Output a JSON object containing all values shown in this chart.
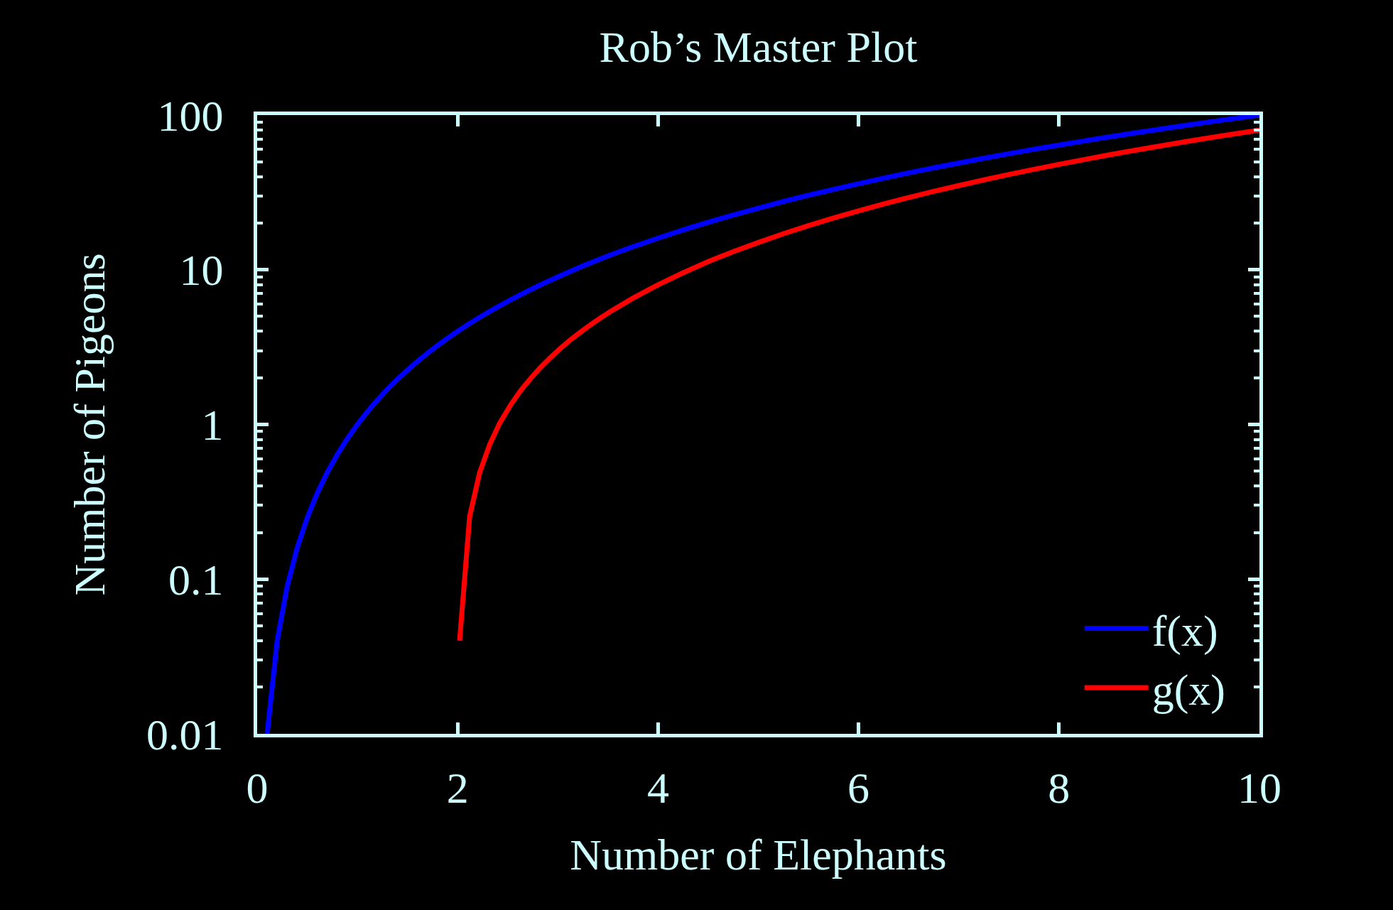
{
  "chart_data": {
    "type": "line",
    "title": "Rob’s Master Plot",
    "xlabel": "Number of Elephants",
    "ylabel": "Number of Pigeons",
    "series": [
      {
        "name": "f(x)",
        "color": "#0000ff",
        "x": [
          0.1,
          0.2,
          0.3,
          0.4,
          0.5,
          0.6,
          0.7,
          0.8,
          0.9,
          1.0,
          1.1,
          1.2,
          1.3,
          1.4,
          1.5,
          1.6,
          1.7,
          1.8,
          1.9,
          2.0,
          2.1,
          2.2,
          2.3,
          2.4,
          2.5,
          2.6,
          2.7,
          2.8,
          2.9,
          3.0,
          3.25,
          3.5,
          3.75,
          4.0,
          4.25,
          4.5,
          4.75,
          5.0,
          5.25,
          5.5,
          5.75,
          6.0,
          6.25,
          6.5,
          6.75,
          7.0,
          7.25,
          7.5,
          7.75,
          8.0,
          8.25,
          8.5,
          8.75,
          9.0,
          9.25,
          9.5,
          9.75,
          10
        ],
        "values": [
          0.01,
          0.04,
          0.09,
          0.16,
          0.25,
          0.36,
          0.49,
          0.64,
          0.81,
          1.0,
          1.21,
          1.44,
          1.69,
          1.96,
          2.25,
          2.56,
          2.89,
          3.24,
          3.61,
          4.0,
          4.41,
          4.84,
          5.29,
          5.76,
          6.25,
          6.76,
          7.29,
          7.84,
          8.41,
          9.0,
          10.6,
          12.3,
          14.1,
          16,
          18.1,
          20.3,
          22.6,
          25,
          27.6,
          30.3,
          33.1,
          36,
          39.1,
          42.3,
          45.6,
          49,
          52.6,
          56.3,
          60.1,
          64,
          68.1,
          72.3,
          76.6,
          81,
          85.6,
          90.3,
          95.1,
          100
        ]
      },
      {
        "name": "g(x)",
        "color": "#ff0000",
        "x": [
          2.02,
          2.12,
          2.22,
          2.32,
          2.42,
          2.53,
          2.63,
          2.73,
          2.83,
          2.93,
          3.03,
          3.13,
          3.23,
          3.33,
          3.43,
          3.54,
          3.75,
          4.0,
          4.25,
          4.5,
          4.75,
          5.0,
          5.25,
          5.5,
          5.75,
          6.0,
          6.25,
          6.5,
          6.75,
          7.0,
          7.25,
          7.5,
          7.75,
          8.0,
          8.25,
          8.5,
          8.75,
          9.0,
          9.25,
          9.5,
          9.75,
          10
        ],
        "values": [
          0.04,
          0.254,
          0.488,
          0.742,
          1.02,
          1.34,
          1.66,
          1.99,
          2.35,
          2.72,
          3.12,
          3.54,
          3.97,
          4.43,
          4.9,
          5.45,
          6.56,
          8.0,
          9.56,
          11.3,
          13.1,
          15,
          17.1,
          19.3,
          21.6,
          24,
          26.6,
          29.3,
          32.1,
          35,
          38.1,
          41.3,
          44.6,
          48,
          51.6,
          55.3,
          59.1,
          63,
          67.1,
          71.3,
          75.6,
          80
        ]
      }
    ],
    "xlim": [
      0,
      10
    ],
    "xticks": [
      0,
      2,
      4,
      6,
      8,
      10
    ],
    "ylim": [
      0.01,
      100
    ],
    "log": true,
    "yticks": [
      {
        "value": 0.01,
        "label": "0.01"
      },
      {
        "value": 0.02,
        "label": null
      },
      {
        "value": 0.03,
        "label": null
      },
      {
        "value": 0.04,
        "label": null
      },
      {
        "value": 0.05,
        "label": null
      },
      {
        "value": 0.06,
        "label": null
      },
      {
        "value": 0.07,
        "label": null
      },
      {
        "value": 0.08,
        "label": null
      },
      {
        "value": 0.09,
        "label": null
      },
      {
        "value": 0.1,
        "label": "0.1"
      },
      {
        "value": 0.2,
        "label": null
      },
      {
        "value": 0.3,
        "label": null
      },
      {
        "value": 0.4,
        "label": null
      },
      {
        "value": 0.5,
        "label": null
      },
      {
        "value": 0.6,
        "label": null
      },
      {
        "value": 0.7,
        "label": null
      },
      {
        "value": 0.8,
        "label": null
      },
      {
        "value": 0.9,
        "label": null
      },
      1,
      {
        "value": 2,
        "label": null
      },
      {
        "value": 3,
        "label": null
      },
      {
        "value": 4,
        "label": null
      },
      {
        "value": 5,
        "label": null
      },
      {
        "value": 6,
        "label": null
      },
      {
        "value": 7,
        "label": null
      },
      {
        "value": 8,
        "label": null
      },
      {
        "value": 9,
        "label": null
      },
      10,
      {
        "value": 20,
        "label": null
      },
      {
        "value": 30,
        "label": null
      },
      {
        "value": 40,
        "label": null
      },
      {
        "value": 50,
        "label": null
      },
      {
        "value": 60,
        "label": null
      },
      {
        "value": 70,
        "label": null
      },
      {
        "value": 80,
        "label": null
      },
      {
        "value": 90,
        "label": null
      },
      100
    ],
    "legend": "bottom right"
  }
}
